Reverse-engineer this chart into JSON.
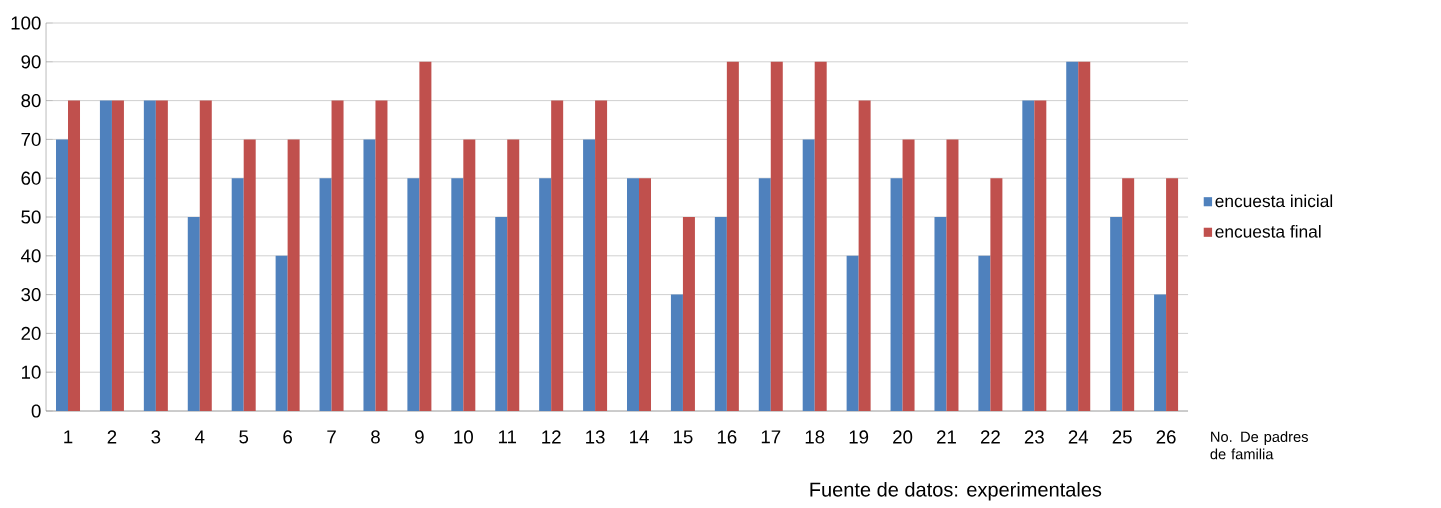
{
  "chart_data": {
    "type": "bar",
    "xlabel": "No. De padres de familia",
    "annotations": [
      "Fuente de datos: experimentales"
    ],
    "categories": [
      "1",
      "2",
      "3",
      "4",
      "5",
      "6",
      "7",
      "8",
      "9",
      "10",
      "11",
      "12",
      "13",
      "14",
      "15",
      "16",
      "17",
      "18",
      "19",
      "20",
      "21",
      "22",
      "23",
      "24",
      "25",
      "26"
    ],
    "series": [
      {
        "name": "encuesta inicial",
        "color": "#4f81bd",
        "values": [
          70,
          80,
          80,
          50,
          60,
          40,
          60,
          70,
          60,
          60,
          50,
          60,
          70,
          60,
          30,
          50,
          60,
          70,
          40,
          60,
          50,
          40,
          80,
          90,
          50,
          30
        ]
      },
      {
        "name": "encuesta final",
        "color": "#c0504d",
        "values": [
          80,
          80,
          80,
          80,
          70,
          70,
          80,
          80,
          90,
          70,
          70,
          80,
          80,
          60,
          50,
          90,
          90,
          90,
          80,
          70,
          70,
          60,
          80,
          90,
          60,
          60
        ]
      }
    ],
    "ylim": [
      0,
      100
    ],
    "yticks": [
      0,
      10,
      20,
      30,
      40,
      50,
      60,
      70,
      80,
      90,
      100
    ],
    "grid": "y",
    "legend": "right"
  }
}
